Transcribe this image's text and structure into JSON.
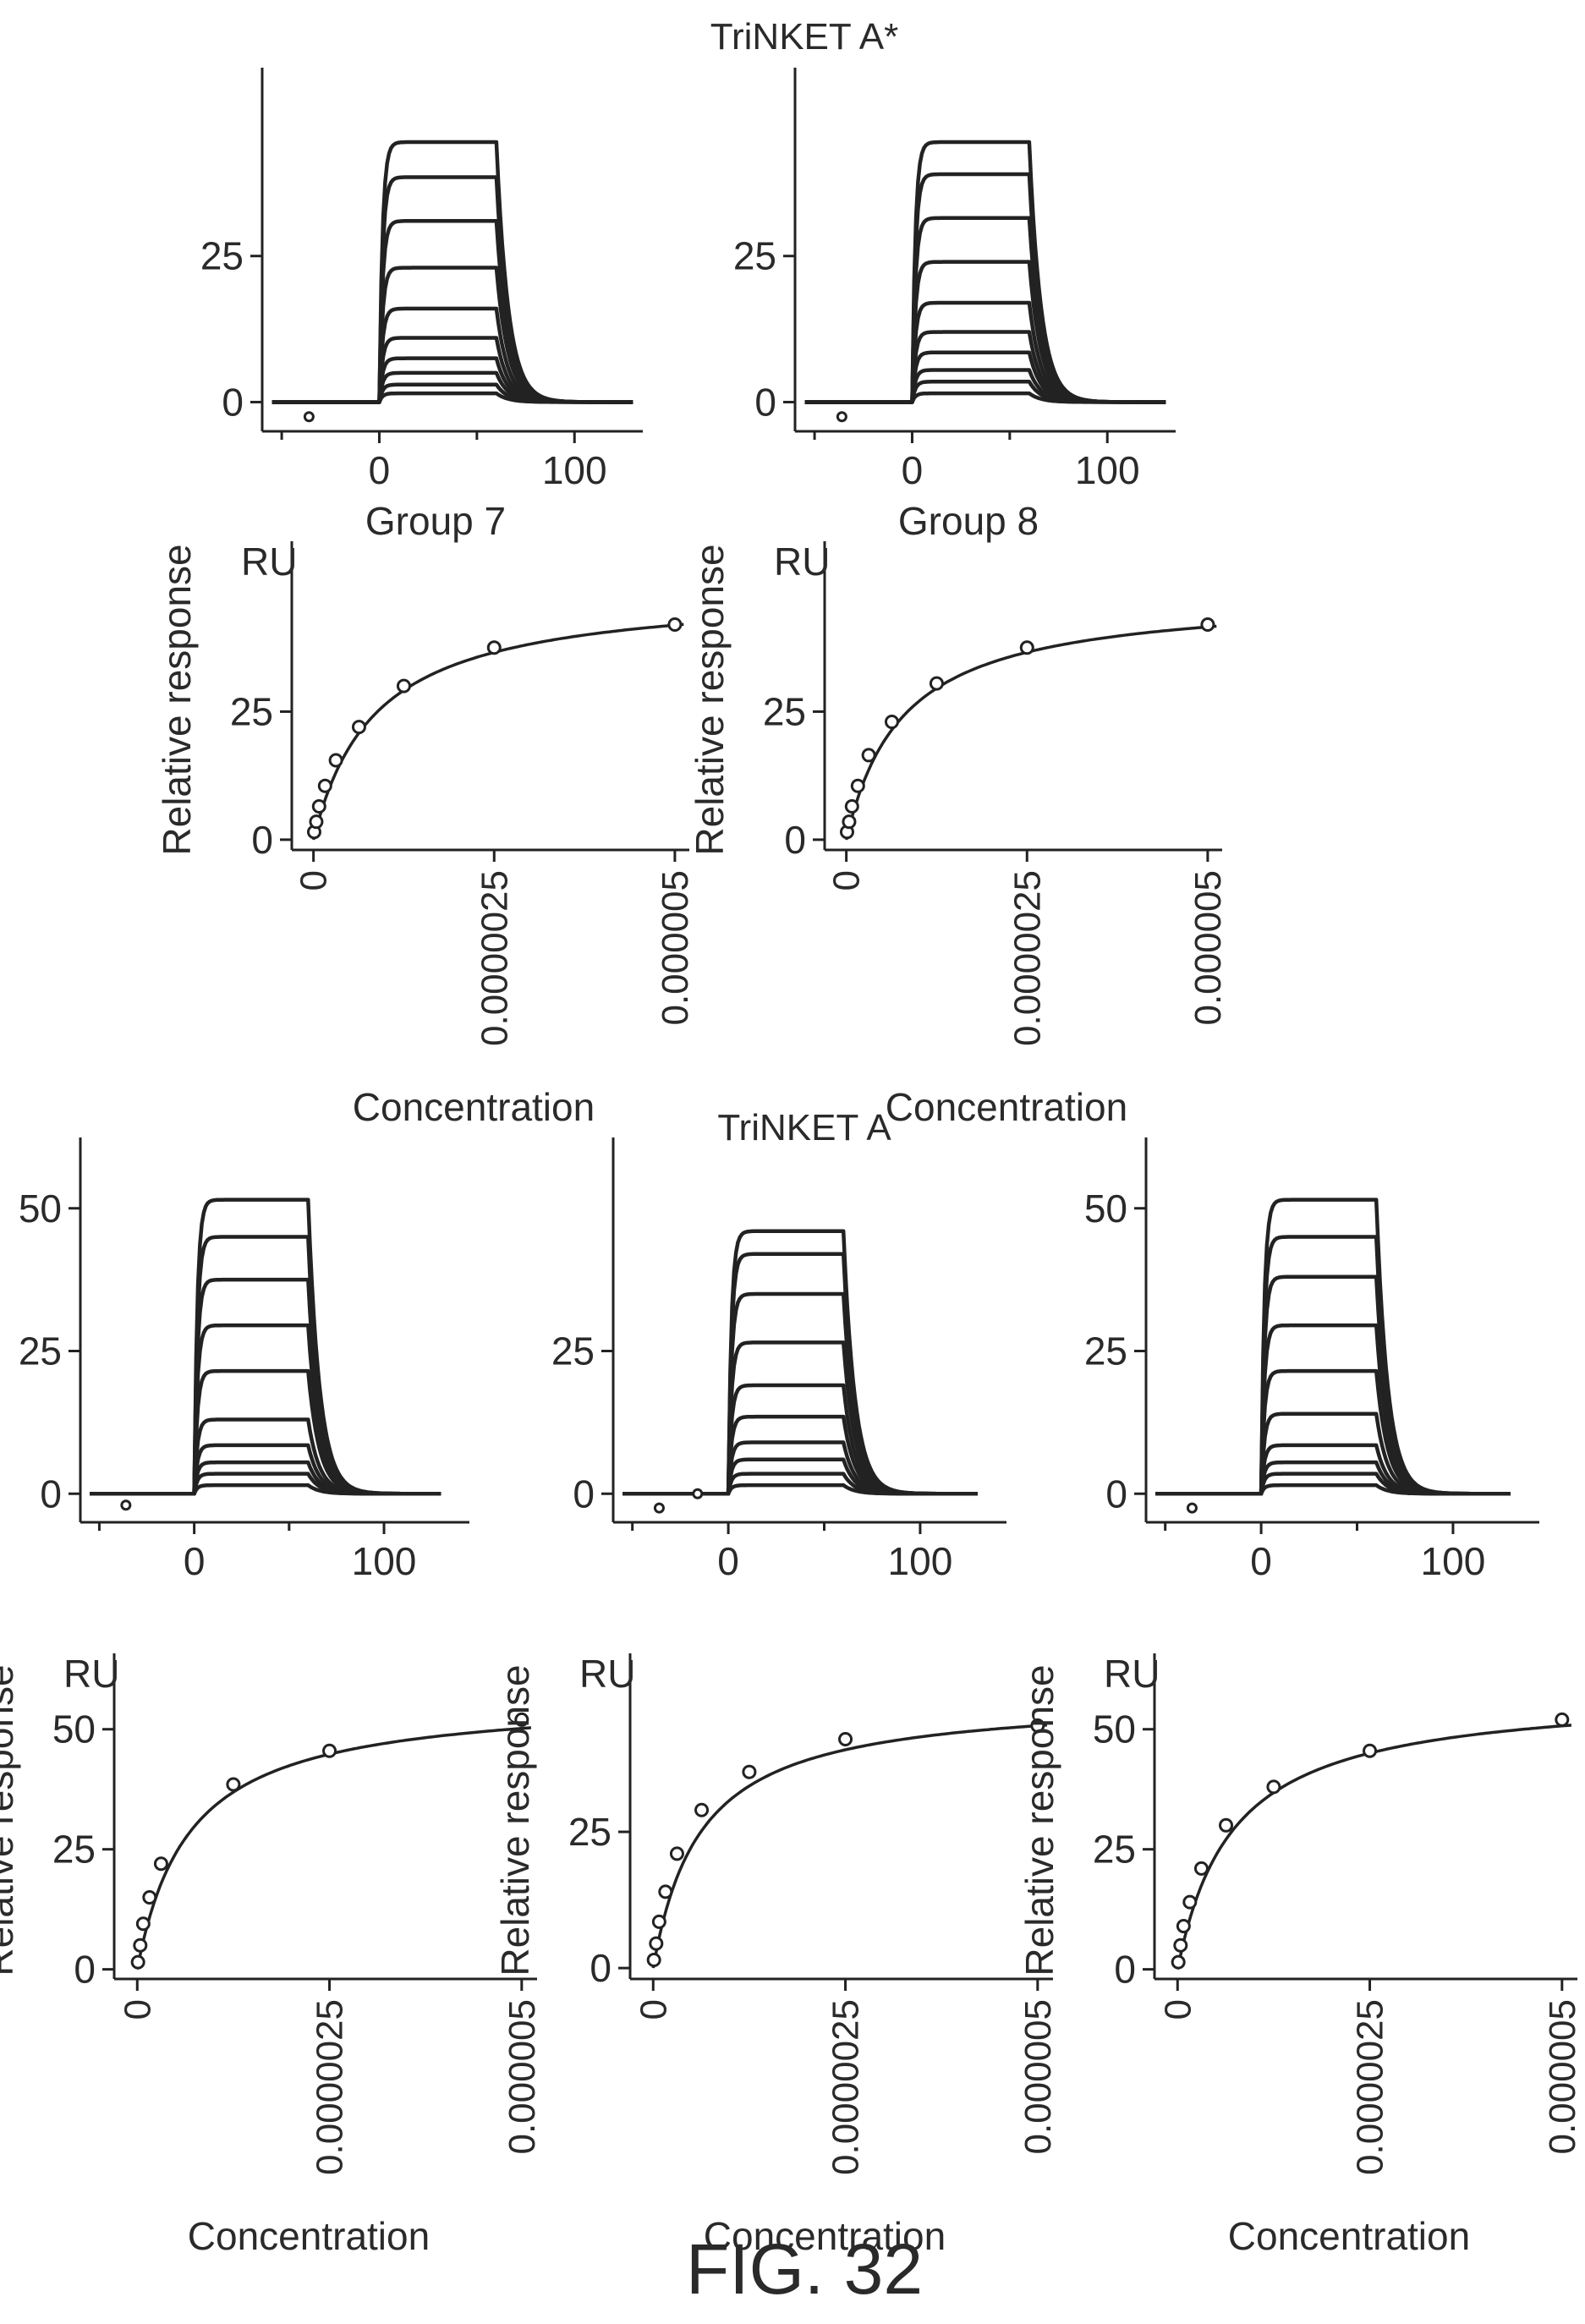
{
  "sections": [
    {
      "title": "TriNKET A*"
    },
    {
      "title": "TriNKET A"
    }
  ],
  "figure_label": "FIG. 32",
  "chart_data": [
    {
      "type": "line",
      "section": 0,
      "kind": "sensorgram",
      "caption": "Group 7",
      "xlabel": "",
      "ylabel": "",
      "xlim": [
        -60,
        135
      ],
      "ylim": [
        -5,
        50
      ],
      "x_ticks": [
        0,
        100
      ],
      "y_ticks": [
        0,
        25
      ],
      "association_start": 0,
      "dissociation_start": 60,
      "series": [
        {
          "plateau": 44.5
        },
        {
          "plateau": 38.5
        },
        {
          "plateau": 31
        },
        {
          "plateau": 23
        },
        {
          "plateau": 16
        },
        {
          "plateau": 11
        },
        {
          "plateau": 7.5
        },
        {
          "plateau": 5
        },
        {
          "plateau": 3
        },
        {
          "plateau": 1.5
        }
      ],
      "markers": [
        {
          "x": -36,
          "y": -2.5
        }
      ]
    },
    {
      "type": "line",
      "section": 0,
      "kind": "sensorgram",
      "caption": "Group 8",
      "xlabel": "",
      "ylabel": "",
      "xlim": [
        -60,
        135
      ],
      "ylim": [
        -5,
        50
      ],
      "x_ticks": [
        0,
        100
      ],
      "y_ticks": [
        0,
        25
      ],
      "association_start": 0,
      "dissociation_start": 60,
      "series": [
        {
          "plateau": 44.5
        },
        {
          "plateau": 39
        },
        {
          "plateau": 31.5
        },
        {
          "plateau": 24
        },
        {
          "plateau": 17
        },
        {
          "plateau": 12
        },
        {
          "plateau": 8.5
        },
        {
          "plateau": 5.5
        },
        {
          "plateau": 3.5
        },
        {
          "plateau": 1.5
        }
      ],
      "markers": [
        {
          "x": -36,
          "y": -2.5
        }
      ]
    },
    {
      "type": "scatter",
      "section": 0,
      "kind": "affinity",
      "caption": "",
      "xlabel": "Concentration",
      "ylabel": "Relative response",
      "unit_label": "RU",
      "xlim": [
        -3e-07,
        5.2e-06
      ],
      "ylim": [
        -2,
        50
      ],
      "x_ticks": [
        "0",
        "0.0000025",
        "0.000005"
      ],
      "x_tick_values": [
        0,
        2.5e-06,
        5e-06
      ],
      "y_ticks": [
        0,
        25
      ],
      "points": [
        {
          "x": 9.8e-09,
          "y": 1.5
        },
        {
          "x": 3.9e-08,
          "y": 3.5
        },
        {
          "x": 7.8e-08,
          "y": 6.5
        },
        {
          "x": 1.6e-07,
          "y": 10.5
        },
        {
          "x": 3.1e-07,
          "y": 15.5
        },
        {
          "x": 6.3e-07,
          "y": 22
        },
        {
          "x": 1.25e-06,
          "y": 30
        },
        {
          "x": 2.5e-06,
          "y": 37.5
        },
        {
          "x": 5e-06,
          "y": 42
        }
      ],
      "fit": {
        "rmax": 49,
        "kd": 8.5e-07
      }
    },
    {
      "type": "scatter",
      "section": 0,
      "kind": "affinity",
      "caption": "",
      "xlabel": "Concentration",
      "ylabel": "Relative response",
      "unit_label": "RU",
      "xlim": [
        -3e-07,
        5.2e-06
      ],
      "ylim": [
        -2,
        50
      ],
      "x_ticks": [
        "0",
        "0.0000025",
        "0.000005"
      ],
      "x_tick_values": [
        0,
        2.5e-06,
        5e-06
      ],
      "y_ticks": [
        0,
        25
      ],
      "points": [
        {
          "x": 9.8e-09,
          "y": 1.5
        },
        {
          "x": 3.9e-08,
          "y": 3.5
        },
        {
          "x": 7.8e-08,
          "y": 6.5
        },
        {
          "x": 1.6e-07,
          "y": 10.5
        },
        {
          "x": 3.1e-07,
          "y": 16.5
        },
        {
          "x": 6.3e-07,
          "y": 23
        },
        {
          "x": 1.25e-06,
          "y": 30.5
        },
        {
          "x": 2.5e-06,
          "y": 37.5
        },
        {
          "x": 5e-06,
          "y": 42
        }
      ],
      "fit": {
        "rmax": 48,
        "kd": 7.8e-07
      }
    },
    {
      "type": "line",
      "section": 1,
      "kind": "sensorgram",
      "caption": "",
      "xlabel": "",
      "ylabel": "",
      "xlim": [
        -60,
        145
      ],
      "ylim": [
        -5,
        55
      ],
      "x_ticks": [
        0,
        100
      ],
      "y_ticks": [
        0,
        25,
        50
      ],
      "association_start": 0,
      "dissociation_start": 60,
      "series": [
        {
          "plateau": 51.5
        },
        {
          "plateau": 45
        },
        {
          "plateau": 37.5
        },
        {
          "plateau": 29.5
        },
        {
          "plateau": 21.5
        },
        {
          "plateau": 13
        },
        {
          "plateau": 8.5
        },
        {
          "plateau": 5.5
        },
        {
          "plateau": 3.5
        },
        {
          "plateau": 1.5
        }
      ],
      "markers": [
        {
          "x": -36,
          "y": -2
        }
      ]
    },
    {
      "type": "line",
      "section": 1,
      "kind": "sensorgram",
      "caption": "",
      "xlabel": "",
      "ylabel": "",
      "xlim": [
        -60,
        145
      ],
      "ylim": [
        -5,
        55
      ],
      "x_ticks": [
        0,
        100
      ],
      "y_ticks": [
        0,
        25
      ],
      "association_start": 0,
      "dissociation_start": 60,
      "series": [
        {
          "plateau": 46
        },
        {
          "plateau": 42
        },
        {
          "plateau": 35
        },
        {
          "plateau": 26.5
        },
        {
          "plateau": 19
        },
        {
          "plateau": 13.5
        },
        {
          "plateau": 9
        },
        {
          "plateau": 6
        },
        {
          "plateau": 3.5
        },
        {
          "plateau": 1.5
        }
      ],
      "markers": [
        {
          "x": -36,
          "y": -2.5
        },
        {
          "x": -16,
          "y": 0
        }
      ]
    },
    {
      "type": "line",
      "section": 1,
      "kind": "sensorgram",
      "caption": "",
      "xlabel": "",
      "ylabel": "",
      "xlim": [
        -60,
        145
      ],
      "ylim": [
        -5,
        55
      ],
      "x_ticks": [
        0,
        100
      ],
      "y_ticks": [
        0,
        25,
        50
      ],
      "association_start": 0,
      "dissociation_start": 60,
      "series": [
        {
          "plateau": 51.5
        },
        {
          "plateau": 45
        },
        {
          "plateau": 38
        },
        {
          "plateau": 29.5
        },
        {
          "plateau": 21.5
        },
        {
          "plateau": 14
        },
        {
          "plateau": 8.5
        },
        {
          "plateau": 5.5
        },
        {
          "plateau": 3.5
        },
        {
          "plateau": 1.5
        }
      ],
      "markers": [
        {
          "x": -36,
          "y": -2.5
        }
      ]
    },
    {
      "type": "scatter",
      "section": 1,
      "kind": "affinity",
      "caption": "",
      "xlabel": "Concentration",
      "ylabel": "Relative response",
      "unit_label": "RU",
      "xlim": [
        -3e-07,
        5.2e-06
      ],
      "ylim": [
        -2,
        57
      ],
      "x_ticks": [
        "0",
        "0.0000025",
        "0.000005"
      ],
      "x_tick_values": [
        0,
        2.5e-06,
        5e-06
      ],
      "y_ticks": [
        0,
        25,
        50
      ],
      "points": [
        {
          "x": 9.8e-09,
          "y": 1.5
        },
        {
          "x": 3.9e-08,
          "y": 5
        },
        {
          "x": 7.8e-08,
          "y": 9.5
        },
        {
          "x": 1.6e-07,
          "y": 15
        },
        {
          "x": 3.1e-07,
          "y": 22
        },
        {
          "x": 1.25e-06,
          "y": 38.5
        },
        {
          "x": 2.5e-06,
          "y": 45.5
        },
        {
          "x": 5e-06,
          "y": 52
        }
      ],
      "fit": {
        "rmax": 57,
        "kd": 6.8e-07
      }
    },
    {
      "type": "scatter",
      "section": 1,
      "kind": "affinity",
      "caption": "",
      "xlabel": "Concentration",
      "ylabel": "Relative response",
      "unit_label": "RU",
      "xlim": [
        -3e-07,
        5.2e-06
      ],
      "ylim": [
        -2,
        50
      ],
      "x_ticks": [
        "0",
        "0.0000025",
        "0.000005"
      ],
      "x_tick_values": [
        0,
        2.5e-06,
        5e-06
      ],
      "y_ticks": [
        0,
        25
      ],
      "points": [
        {
          "x": 9.8e-09,
          "y": 1.5
        },
        {
          "x": 3.9e-08,
          "y": 4.5
        },
        {
          "x": 7.8e-08,
          "y": 8.5
        },
        {
          "x": 1.6e-07,
          "y": 14
        },
        {
          "x": 3.1e-07,
          "y": 21
        },
        {
          "x": 6.3e-07,
          "y": 29
        },
        {
          "x": 1.25e-06,
          "y": 36
        },
        {
          "x": 2.5e-06,
          "y": 42
        },
        {
          "x": 5e-06,
          "y": 44.5
        }
      ],
      "fit": {
        "rmax": 50,
        "kd": 6.2e-07
      }
    },
    {
      "type": "scatter",
      "section": 1,
      "kind": "affinity",
      "caption": "",
      "xlabel": "Concentration",
      "ylabel": "Relative response",
      "unit_label": "RU",
      "xlim": [
        -3e-07,
        5.2e-06
      ],
      "ylim": [
        -2,
        57
      ],
      "x_ticks": [
        "0",
        "0.0000025",
        "0.000005"
      ],
      "x_tick_values": [
        0,
        2.5e-06,
        5e-06
      ],
      "y_ticks": [
        0,
        25,
        50
      ],
      "points": [
        {
          "x": 9.8e-09,
          "y": 1.5
        },
        {
          "x": 3.9e-08,
          "y": 5
        },
        {
          "x": 7.8e-08,
          "y": 9
        },
        {
          "x": 1.6e-07,
          "y": 14
        },
        {
          "x": 3.1e-07,
          "y": 21
        },
        {
          "x": 6.3e-07,
          "y": 30
        },
        {
          "x": 1.25e-06,
          "y": 38
        },
        {
          "x": 2.5e-06,
          "y": 45.5
        },
        {
          "x": 5e-06,
          "y": 52
        }
      ],
      "fit": {
        "rmax": 58,
        "kd": 7.2e-07
      }
    }
  ]
}
